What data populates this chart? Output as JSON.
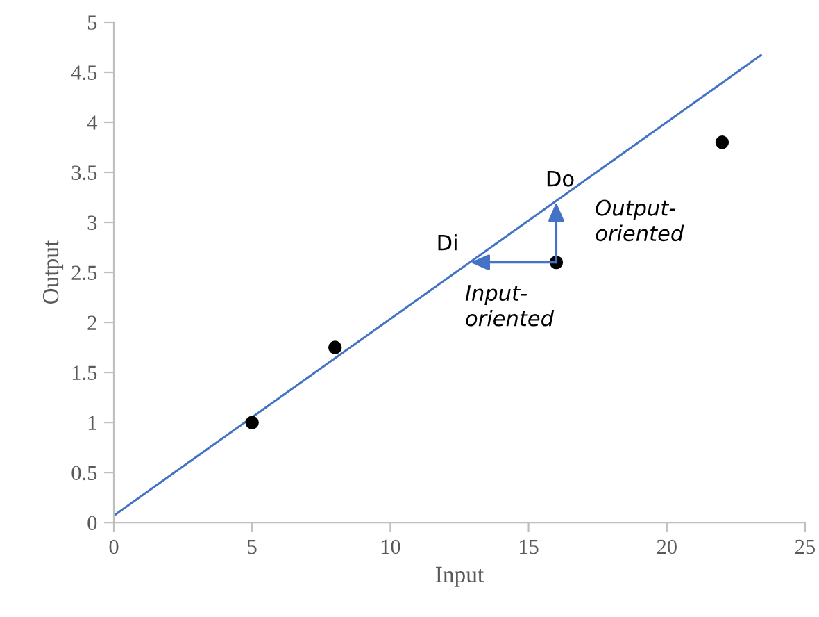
{
  "chart_data": {
    "type": "scatter",
    "xlabel": "Input",
    "ylabel": "Output",
    "xlim": [
      0,
      25
    ],
    "xticks": [
      0,
      5,
      10,
      15,
      20,
      25
    ],
    "ylim": [
      0,
      5
    ],
    "yticks": [
      0,
      0.5,
      1,
      1.5,
      2,
      2.5,
      3,
      3.5,
      4,
      4.5,
      5
    ],
    "grid": false,
    "marker": "circle",
    "series": [
      {
        "color": "#000000",
        "x": [
          5,
          8,
          16,
          22
        ],
        "values": [
          1,
          1.75,
          2.6,
          3.8
        ]
      },
      {
        "type": "line",
        "color": "#4472c4",
        "x": [
          0,
          23.4
        ],
        "values": [
          0.07,
          4.67
        ],
        "marker": "none"
      }
    ],
    "annotations": [
      {
        "text": "Di",
        "x": 12.9,
        "y": 2.6
      },
      {
        "text": "Do",
        "x": 16,
        "y": 3.2
      },
      "Output-\noriented",
      "Input-\noriented"
    ]
  }
}
